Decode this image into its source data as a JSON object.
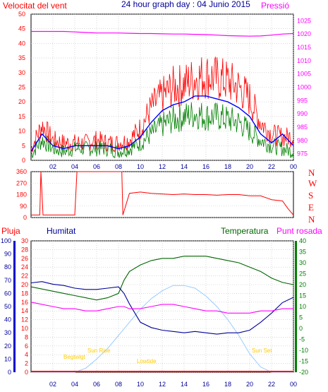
{
  "header": {
    "wind_label": "Velocitat del vent",
    "title": "24 hour graph day : 04 Junio 2015",
    "pressure_label": "Pressió"
  },
  "lower_header": {
    "rain_label": "Pluja",
    "humidity_label": "Humitat",
    "temperature_label": "Temperatura",
    "dewpoint_label": "Punt rosada"
  },
  "wind_dir_labels": [
    "N",
    "W",
    "S",
    "E",
    "N"
  ],
  "annotations": {
    "beginning_twilight": "Begtwlgt",
    "sun_rise": "Sun Rise",
    "lowtide": "Lowtide",
    "sun_set": "Sun Set"
  },
  "colors": {
    "wind_speed": "#ff0000",
    "wind_avg": "#008000",
    "wind_smooth": "#0000ff",
    "pressure": "#ff00ff",
    "direction": "#ff0000",
    "humidity": "#000099",
    "temperature": "#006600",
    "dewpoint": "#ff00ff",
    "solar": "#99ccff",
    "grid": "#c0c0c0"
  },
  "chart_data": [
    {
      "type": "line",
      "name": "wind_pressure",
      "x_ticks": [
        "02",
        "04",
        "06",
        "08",
        "10",
        "12",
        "14",
        "16",
        "18",
        "20",
        "22",
        "00"
      ],
      "y_left_ticks": [
        0,
        5,
        10,
        15,
        20,
        25,
        30,
        35,
        40,
        45,
        50
      ],
      "y_left_range": [
        0,
        50
      ],
      "y_right_ticks": [
        975,
        980,
        985,
        990,
        995,
        1000,
        1005,
        1010,
        1015,
        1020,
        1025
      ],
      "y_right_range": [
        972.5,
        1027.5
      ],
      "hours": [
        0,
        1,
        2,
        3,
        4,
        5,
        6,
        7,
        8,
        9,
        10,
        11,
        12,
        13,
        14,
        15,
        16,
        17,
        18,
        19,
        20,
        21,
        22,
        23,
        24
      ],
      "wind_gust": [
        4,
        12,
        7,
        6,
        6,
        6,
        7,
        6,
        6,
        7,
        11,
        18,
        22,
        25,
        26,
        28,
        29,
        28,
        27,
        25,
        21,
        13,
        9,
        8,
        8
      ],
      "wind_avg": [
        2,
        7,
        4,
        3,
        4,
        4,
        4,
        4,
        3,
        4,
        6,
        9,
        12,
        14,
        15,
        16,
        15,
        15,
        14,
        13,
        10,
        7,
        5,
        4,
        3
      ],
      "wind_blue": [
        3,
        9,
        5,
        4,
        5,
        5,
        5,
        5,
        4,
        5,
        8,
        13,
        17,
        19,
        20,
        22,
        22,
        21,
        20,
        18,
        15,
        9,
        6,
        9,
        5
      ],
      "pressure": [
        1021,
        1021,
        1021,
        1021,
        1020.8,
        1020.6,
        1020.4,
        1020.4,
        1020.4,
        1020.3,
        1020.2,
        1020.2,
        1020.1,
        1020,
        1020,
        1019.9,
        1019.8,
        1019.6,
        1019.4,
        1019.3,
        1019.2,
        1019.3,
        1019.6,
        1020,
        1020.2
      ]
    },
    {
      "type": "line",
      "name": "wind_direction",
      "y_ticks": [
        0,
        90,
        180,
        270,
        360
      ],
      "y_range": [
        0,
        360
      ],
      "hours": [
        0,
        0.8,
        0.9,
        1.1,
        1.4,
        2,
        3,
        4,
        4.2,
        4.3,
        5,
        6,
        7,
        8,
        8.3,
        8.4,
        9,
        10,
        11,
        12,
        13,
        14,
        15,
        16,
        17,
        18,
        19,
        20,
        21,
        22,
        23,
        23.5,
        24
      ],
      "direction": [
        20,
        20,
        360,
        20,
        20,
        20,
        20,
        20,
        360,
        360,
        360,
        360,
        360,
        360,
        360,
        20,
        190,
        200,
        190,
        185,
        180,
        185,
        180,
        180,
        175,
        180,
        180,
        170,
        170,
        140,
        130,
        70,
        20
      ]
    },
    {
      "type": "line",
      "name": "temp_humidity_rain",
      "rain_ticks": [
        0,
        2,
        4,
        6,
        8,
        10,
        12,
        14,
        16,
        18,
        20,
        22,
        24,
        26,
        28,
        30
      ],
      "humidity_ticks": [
        0,
        10,
        20,
        30,
        40,
        50,
        60,
        70,
        80,
        90,
        100
      ],
      "temp_ticks": [
        -20,
        -15,
        -10,
        -5,
        0,
        5,
        10,
        15,
        20,
        25,
        30,
        35,
        40
      ],
      "hours": [
        0,
        1,
        2,
        3,
        4,
        5,
        6,
        7,
        8,
        8.5,
        9,
        10,
        11,
        12,
        13,
        14,
        15,
        16,
        17,
        18,
        19,
        20,
        21,
        22,
        23,
        24
      ],
      "humidity": [
        68,
        69,
        67,
        66,
        64,
        63,
        63,
        64,
        65,
        60,
        52,
        38,
        34,
        32,
        31,
        30,
        31,
        30,
        29,
        30,
        30,
        32,
        38,
        45,
        53,
        57
      ],
      "temperature": [
        19,
        18,
        17,
        16,
        15,
        14,
        13,
        14,
        16,
        22,
        26,
        29,
        31,
        32,
        32,
        33,
        33,
        33,
        32,
        31,
        30,
        28,
        26,
        23,
        21,
        20
      ],
      "dewpoint": [
        12,
        11,
        10,
        9,
        9,
        8,
        8,
        9,
        10,
        10,
        9,
        9,
        10,
        11,
        11,
        10,
        9,
        8,
        8,
        7,
        7,
        7,
        8,
        8,
        9,
        9
      ],
      "solar": [
        0,
        0,
        0,
        0,
        0,
        3,
        10,
        18,
        28,
        33,
        38,
        48,
        56,
        62,
        66,
        66,
        64,
        58,
        50,
        40,
        28,
        14,
        4,
        0,
        0,
        0
      ]
    }
  ]
}
